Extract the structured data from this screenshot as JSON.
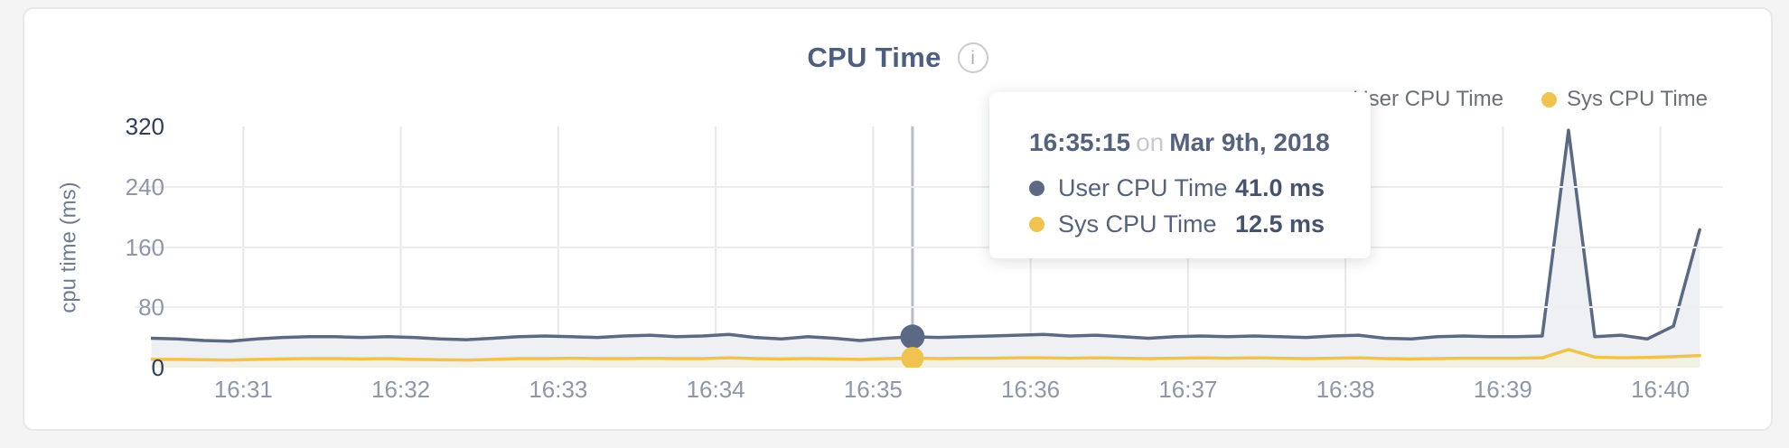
{
  "ui": {
    "tooltip_on": "on",
    "info_glyph": "i"
  },
  "colors": {
    "user_line": "#5b6983",
    "user_fill": "#eef0f4",
    "sys_line": "#f0c34e",
    "sys_fill": "#f3f0e4",
    "crosshair": "#b9bcc1",
    "vgrid": "#e8e8e8",
    "hgrid": "#ededed"
  },
  "chart_data": {
    "type": "area",
    "title": "CPU Time",
    "ylabel": "cpu time (ms)",
    "ylim": [
      0,
      320
    ],
    "yticks": [
      320,
      240,
      160,
      80,
      0
    ],
    "x_ticks": [
      "16:31",
      "16:32",
      "16:33",
      "16:34",
      "16:35",
      "16:36",
      "16:37",
      "16:38",
      "16:39",
      "16:40"
    ],
    "x_range": [
      "16:30:25",
      "16:40:15"
    ],
    "grid": "on",
    "legend_position": "top-right",
    "times": [
      "16:30:25",
      "16:30:35",
      "16:30:45",
      "16:30:55",
      "16:31:05",
      "16:31:15",
      "16:31:25",
      "16:31:35",
      "16:31:45",
      "16:31:55",
      "16:32:05",
      "16:32:15",
      "16:32:25",
      "16:32:35",
      "16:32:45",
      "16:32:55",
      "16:33:05",
      "16:33:15",
      "16:33:25",
      "16:33:35",
      "16:33:45",
      "16:33:55",
      "16:34:05",
      "16:34:15",
      "16:34:25",
      "16:34:35",
      "16:34:45",
      "16:34:55",
      "16:35:05",
      "16:35:15",
      "16:35:25",
      "16:35:35",
      "16:35:45",
      "16:35:55",
      "16:36:05",
      "16:36:15",
      "16:36:25",
      "16:36:35",
      "16:36:45",
      "16:36:55",
      "16:37:05",
      "16:37:15",
      "16:37:25",
      "16:37:35",
      "16:37:45",
      "16:37:55",
      "16:38:05",
      "16:38:15",
      "16:38:25",
      "16:38:35",
      "16:38:45",
      "16:38:55",
      "16:39:05",
      "16:39:15",
      "16:39:25",
      "16:39:35",
      "16:39:45",
      "16:39:55",
      "16:40:05",
      "16:40:15"
    ],
    "series": [
      {
        "name": "User CPU Time",
        "color": "#5b6983",
        "fill": "#eef0f4",
        "values": [
          39,
          38,
          36,
          35,
          38,
          40,
          41,
          41,
          40,
          41,
          40,
          38,
          37,
          39,
          41,
          42,
          41,
          40,
          42,
          43,
          41,
          42,
          44,
          40,
          38,
          41,
          39,
          36,
          39,
          41,
          40,
          41,
          42,
          43,
          44,
          42,
          43,
          41,
          39,
          41,
          42,
          41,
          42,
          41,
          40,
          42,
          43,
          39,
          38,
          41,
          42,
          41,
          41,
          42,
          315,
          41,
          43,
          38,
          55,
          183
        ]
      },
      {
        "name": "Sys CPU Time",
        "color": "#f0c34e",
        "fill": "#f3f0e4",
        "values": [
          11,
          11,
          10.5,
          10,
          11,
          11.5,
          12,
          12,
          11.5,
          12,
          11,
          10.5,
          10,
          11,
          12,
          12,
          12.5,
          12,
          12,
          12.5,
          12,
          12,
          13,
          12,
          11.5,
          12,
          11.5,
          11,
          12,
          12.5,
          12,
          12.5,
          12.5,
          13,
          13,
          12.5,
          13,
          12.5,
          12,
          12.5,
          13,
          12.5,
          13,
          12.5,
          12,
          12.5,
          13,
          12,
          11.5,
          12,
          12.5,
          12.5,
          12.5,
          13,
          24,
          14,
          13,
          13.5,
          14.5,
          16
        ]
      }
    ],
    "hover": {
      "time": "16:35:15",
      "date": "Mar 9th, 2018",
      "rows": [
        {
          "name": "User CPU Time",
          "value": "41.0 ms"
        },
        {
          "name": "Sys CPU Time",
          "value": "12.5 ms"
        }
      ]
    }
  }
}
